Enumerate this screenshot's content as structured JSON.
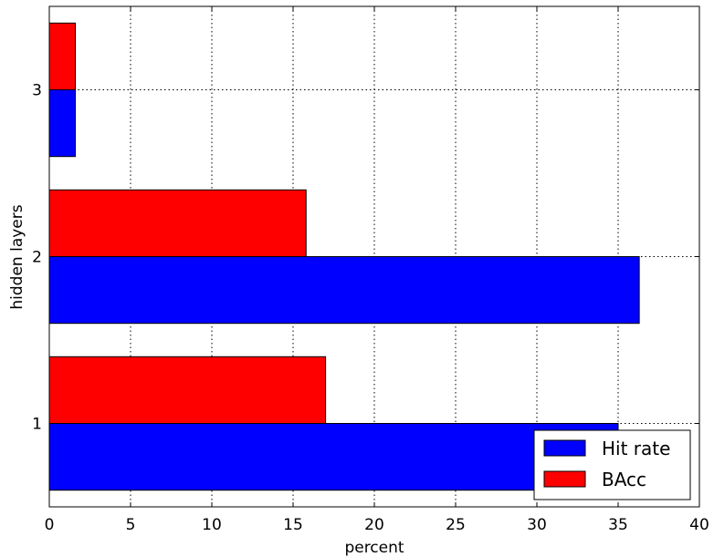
{
  "chart_data": {
    "type": "bar",
    "orientation": "horizontal",
    "categories": [
      "1",
      "2",
      "3"
    ],
    "series": [
      {
        "name": "Hit rate",
        "values": [
          35.0,
          36.3,
          1.6
        ],
        "color": "#0000ff"
      },
      {
        "name": "BAcc",
        "values": [
          17.0,
          15.8,
          1.6
        ],
        "color": "#ff0000"
      }
    ],
    "xlabel": "percent",
    "ylabel": "hidden layers",
    "xlim": [
      0,
      40
    ],
    "ylim": [
      0.5,
      3.5
    ],
    "x_ticks": [
      "0",
      "5",
      "10",
      "15",
      "20",
      "25",
      "30",
      "35",
      "40"
    ],
    "grid": true,
    "legend": {
      "position": "lower-right",
      "entries": [
        "Hit rate",
        "BAcc"
      ]
    }
  }
}
